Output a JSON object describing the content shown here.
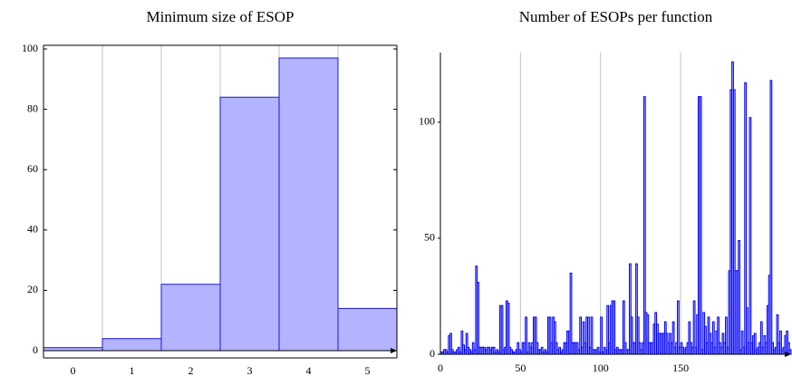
{
  "chart_data": [
    {
      "type": "bar",
      "title": "Minimum size of ESOP",
      "categories": [
        "0",
        "1",
        "2",
        "3",
        "4",
        "5"
      ],
      "values": [
        1,
        4,
        22,
        84,
        97,
        14
      ],
      "color": "#b3b3ff",
      "edge_color": "#1a1ad9",
      "ylim": [
        0,
        100
      ],
      "yticks": [
        0,
        20,
        40,
        60,
        80,
        100
      ]
    },
    {
      "type": "histogram",
      "title": "Number of ESOPs per function",
      "color": "#b3b3ff",
      "edge_color": "#0000ff",
      "x": [
        0,
        1,
        2,
        3,
        4,
        5,
        6,
        7,
        8,
        9,
        10,
        11,
        12,
        13,
        14,
        15,
        16,
        17,
        18,
        19,
        20,
        21,
        22,
        23,
        24,
        25,
        26,
        27,
        28,
        29,
        30,
        31,
        32,
        33,
        34,
        35,
        36,
        37,
        38,
        39,
        40,
        41,
        42,
        43,
        44,
        45,
        46,
        47,
        48,
        49,
        50,
        51,
        52,
        53,
        54,
        55,
        56,
        57,
        58,
        59,
        60,
        61,
        62,
        63,
        64,
        65,
        66,
        67,
        68,
        69,
        70,
        71,
        72,
        73,
        74,
        75,
        76,
        77,
        78,
        79,
        80,
        81,
        82,
        83,
        84,
        85,
        86,
        87,
        88,
        89,
        90,
        91,
        92,
        93,
        94,
        95,
        96,
        97,
        98,
        99,
        100,
        101,
        102,
        103,
        104,
        105,
        106,
        107,
        108,
        109,
        110,
        111,
        112,
        113,
        114,
        115,
        116,
        117,
        118,
        119,
        120,
        121,
        122,
        123,
        124,
        125,
        126,
        127,
        128,
        129,
        130,
        131,
        132,
        133,
        134,
        135,
        136,
        137,
        138,
        139,
        140,
        141,
        142,
        143,
        144,
        145,
        146,
        147,
        148,
        149,
        150,
        151,
        152,
        153,
        154,
        155,
        156,
        157,
        158,
        159,
        160,
        161,
        162,
        163,
        164,
        165,
        166,
        167,
        168,
        169,
        170,
        171,
        172,
        173,
        174,
        175,
        176,
        177,
        178,
        179,
        180,
        181,
        182,
        183,
        184,
        185,
        186,
        187,
        188,
        189,
        190,
        191,
        192,
        193,
        194,
        195,
        196,
        197,
        198,
        199,
        200,
        201,
        202,
        203,
        204,
        205,
        206,
        207,
        208,
        209,
        210,
        211,
        212,
        213,
        214,
        215,
        216,
        217,
        218
      ],
      "values": [
        1,
        1,
        2,
        2,
        1,
        8,
        9,
        2,
        1,
        1,
        2,
        3,
        1,
        10,
        4,
        2,
        9,
        3,
        2,
        1,
        5,
        2,
        38,
        31,
        3,
        3,
        3,
        3,
        2,
        3,
        3,
        2,
        3,
        3,
        1,
        2,
        1,
        21,
        21,
        2,
        3,
        23,
        22,
        3,
        2,
        1,
        1,
        2,
        5,
        2,
        1,
        5,
        5,
        16,
        1,
        5,
        3,
        5,
        16,
        16,
        5,
        2,
        2,
        3,
        1,
        2,
        1,
        16,
        16,
        5,
        16,
        14,
        5,
        2,
        3,
        1,
        2,
        5,
        5,
        10,
        10,
        35,
        5,
        5,
        5,
        5,
        2,
        16,
        3,
        14,
        5,
        16,
        16,
        3,
        16,
        2,
        2,
        2,
        3,
        1,
        16,
        1,
        3,
        2,
        21,
        5,
        21,
        23,
        23,
        2,
        3,
        2,
        2,
        2,
        23,
        5,
        2,
        2,
        39,
        16,
        5,
        5,
        39,
        16,
        5,
        2,
        5,
        111,
        18,
        17,
        5,
        5,
        5,
        13,
        18,
        13,
        9,
        9,
        9,
        9,
        14,
        9,
        5,
        9,
        5,
        14,
        3,
        5,
        23,
        3,
        5,
        3,
        2,
        3,
        5,
        14,
        5,
        3,
        23,
        3,
        17,
        111,
        111,
        2,
        18,
        12,
        5,
        16,
        9,
        5,
        14,
        3,
        10,
        16,
        5,
        3,
        9,
        5,
        16,
        3,
        36,
        114,
        126,
        114,
        36,
        36,
        49,
        2,
        10,
        3,
        117,
        20,
        5,
        102,
        5,
        8,
        9,
        2,
        3,
        5,
        14,
        3,
        8,
        5,
        21,
        34,
        118,
        5,
        2,
        3,
        17,
        5,
        10,
        2,
        3,
        8,
        10,
        5,
        2
      ],
      "xlim": [
        0,
        219
      ],
      "xticks": [
        0,
        50,
        100,
        150
      ],
      "ylim": [
        0,
        130
      ],
      "yticks": [
        0,
        50,
        100
      ]
    }
  ]
}
